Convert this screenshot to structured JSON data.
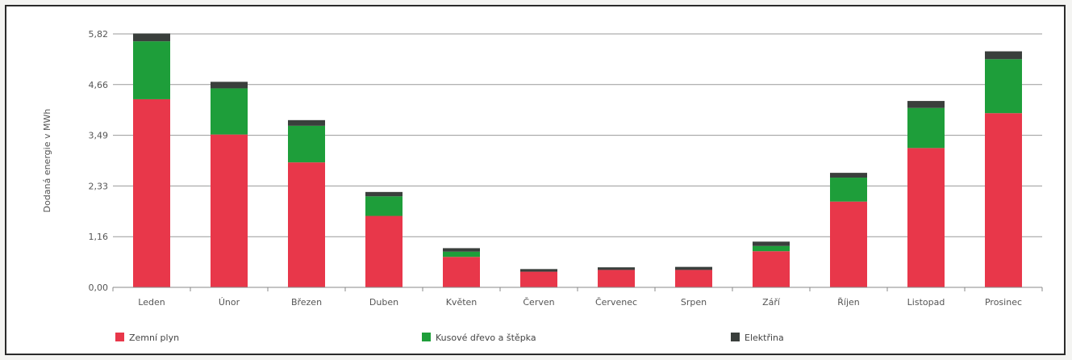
{
  "chart_data": {
    "type": "bar",
    "stacked": true,
    "ylabel": "Dodaná energie v MWh",
    "yticks": [
      "0,00",
      "1,16",
      "2,33",
      "3,49",
      "4,66",
      "5,82"
    ],
    "ytick_values": [
      0,
      1.164,
      2.328,
      3.492,
      4.656,
      5.82
    ],
    "ylim": [
      0,
      5.82
    ],
    "grid": true,
    "legend_position": "bottom",
    "categories": [
      "Leden",
      "Únor",
      "Březen",
      "Duben",
      "Květen",
      "Červen",
      "Červenec",
      "Srpen",
      "Září",
      "Říjen",
      "Listopad",
      "Prosinec"
    ],
    "series": [
      {
        "name": "Zemní plyn",
        "color": "#e8374a",
        "values": [
          4.32,
          3.51,
          2.87,
          1.64,
          0.7,
          0.36,
          0.4,
          0.4,
          0.83,
          1.97,
          3.2,
          4.0
        ]
      },
      {
        "name": "Kusové dřevo a štěpka",
        "color": "#1e9e3a",
        "values": [
          1.33,
          1.06,
          0.84,
          0.45,
          0.12,
          0.0,
          0.0,
          0.0,
          0.12,
          0.55,
          0.92,
          1.24
        ]
      },
      {
        "name": "Elektřina",
        "color": "#3a3f3c",
        "values": [
          0.18,
          0.15,
          0.13,
          0.1,
          0.08,
          0.06,
          0.06,
          0.07,
          0.1,
          0.11,
          0.16,
          0.18
        ]
      }
    ]
  }
}
